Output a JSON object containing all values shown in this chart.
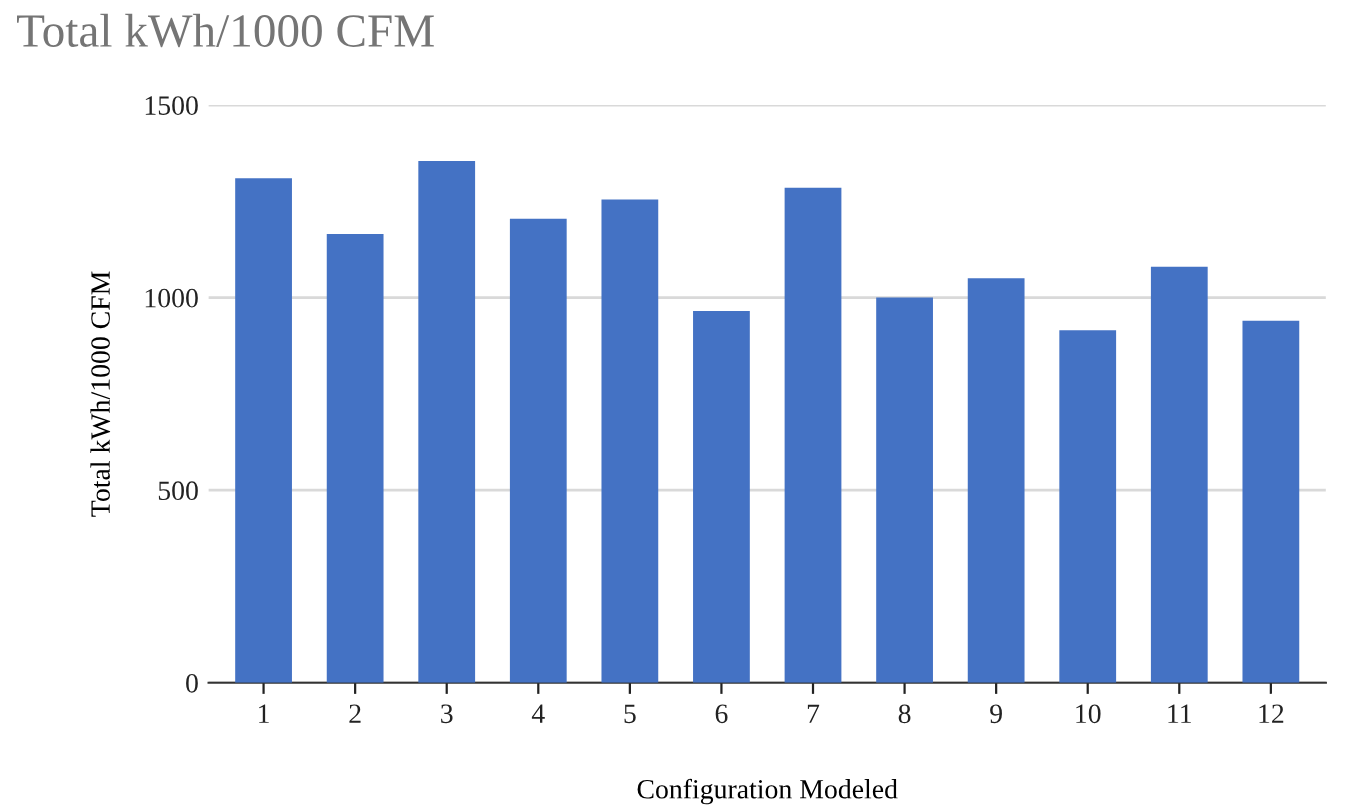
{
  "chart_data": {
    "type": "bar",
    "title": "Total kWh/1000 CFM",
    "xlabel": "Configuration Modeled",
    "ylabel": "Total kWh/1000 CFM",
    "categories": [
      "1",
      "2",
      "3",
      "4",
      "5",
      "6",
      "7",
      "8",
      "9",
      "10",
      "11",
      "12"
    ],
    "values": [
      1310,
      1165,
      1355,
      1205,
      1255,
      965,
      1285,
      1000,
      1050,
      915,
      1080,
      940
    ],
    "color": "#4472c4",
    "ylim": [
      0,
      1500
    ],
    "yticks": [
      0,
      500,
      1000,
      1500
    ],
    "grid": "y",
    "legend": false
  }
}
